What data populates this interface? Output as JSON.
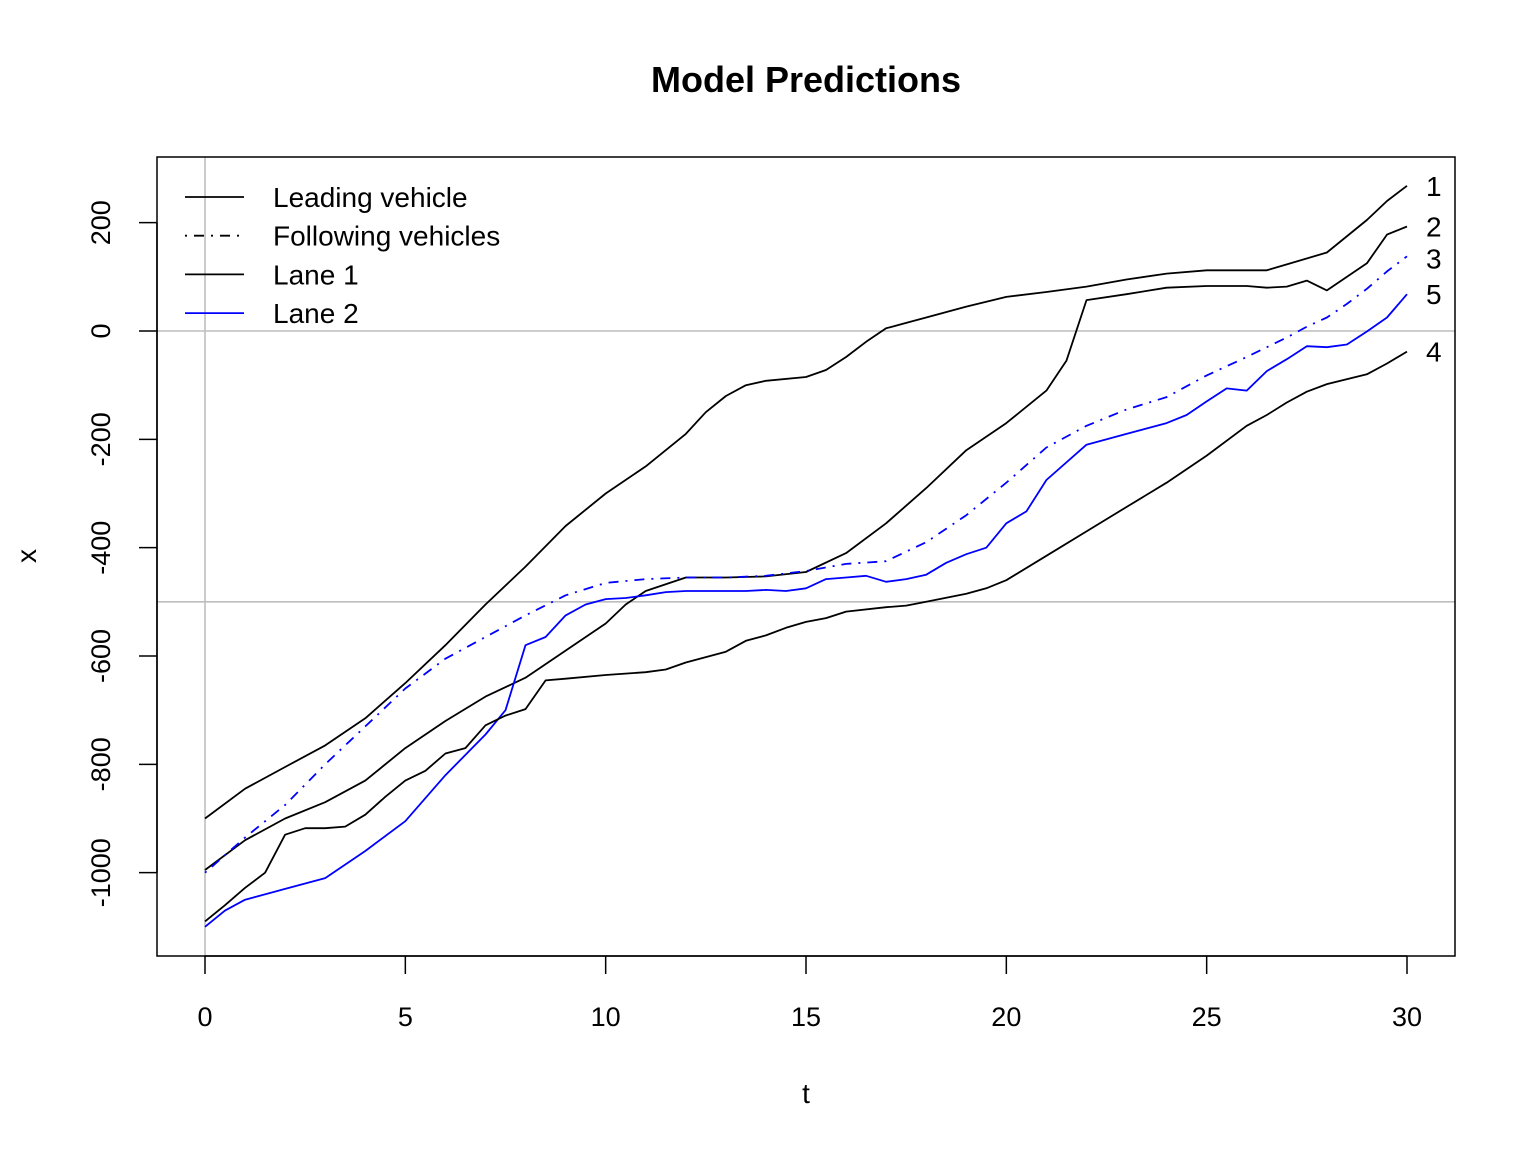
{
  "chart_data": {
    "type": "line",
    "title": "Model Predictions",
    "xlabel": "t",
    "ylabel": "x",
    "xlim": [
      0,
      30
    ],
    "ylim": [
      -1150,
      300
    ],
    "x_ticks": [
      0,
      5,
      10,
      15,
      20,
      25,
      30
    ],
    "y_ticks": [
      -1000,
      -800,
      -600,
      -400,
      -200,
      0,
      200
    ],
    "reference_lines": {
      "vertical": [
        0
      ],
      "horizontal": [
        0,
        -500
      ]
    },
    "legend": {
      "position": "top-left",
      "entries": [
        {
          "label": "Leading vehicle",
          "color": "#000000",
          "dash": "solid"
        },
        {
          "label": "Following vehicles",
          "color": "#000000",
          "dash": "dotdash"
        },
        {
          "label": "Lane 1",
          "color": "#000000",
          "dash": "solid"
        },
        {
          "label": "Lane 2",
          "color": "#0000ff",
          "dash": "solid"
        }
      ]
    },
    "series": [
      {
        "name": "1",
        "lane": "Lane 1",
        "color": "#000000",
        "x": [
          0,
          1,
          2,
          3,
          4,
          5,
          6,
          7,
          8,
          9,
          10,
          11,
          12,
          12.5,
          13,
          13.5,
          14,
          15,
          15.5,
          16,
          16.5,
          17,
          17.5,
          18,
          19,
          20,
          21,
          22,
          23,
          24,
          25,
          26,
          26.5,
          27,
          28,
          29,
          29.5,
          30
        ],
        "y": [
          -900,
          -845,
          -805,
          -765,
          -715,
          -650,
          -580,
          -505,
          -435,
          -360,
          -300,
          -250,
          -190,
          -150,
          -120,
          -100,
          -92,
          -85,
          -72,
          -48,
          -20,
          5,
          15,
          25,
          45,
          63,
          72,
          82,
          95,
          106,
          112,
          112,
          112,
          123,
          145,
          205,
          240,
          268
        ]
      },
      {
        "name": "2",
        "lane": "Lane 1",
        "color": "#000000",
        "x": [
          0,
          1,
          2,
          3,
          4,
          5,
          6,
          7,
          8,
          9,
          10,
          10.5,
          11,
          12,
          13,
          14,
          15,
          16,
          17,
          18,
          19,
          20,
          21,
          21.5,
          22,
          23,
          24,
          25,
          26,
          26.5,
          27,
          27.5,
          28,
          29,
          29.5,
          30
        ],
        "y": [
          -995,
          -940,
          -900,
          -870,
          -830,
          -770,
          -720,
          -675,
          -640,
          -590,
          -540,
          -505,
          -480,
          -455,
          -455,
          -453,
          -445,
          -410,
          -355,
          -290,
          -220,
          -170,
          -110,
          -55,
          57,
          68,
          80,
          83,
          83,
          80,
          82,
          93,
          75,
          125,
          178,
          193
        ]
      },
      {
        "name": "3",
        "lane": "Lane 2",
        "color": "#0000ff",
        "dash": "dotdash",
        "x": [
          0,
          1,
          2,
          3,
          4,
          5,
          6,
          7,
          8,
          9,
          10,
          11,
          12,
          13,
          14,
          15,
          16,
          17,
          18,
          19,
          20,
          21,
          22,
          23,
          24,
          25,
          26,
          27,
          27.5,
          28,
          28.5,
          29,
          29.5,
          30
        ],
        "y": [
          -1000,
          -935,
          -875,
          -800,
          -730,
          -660,
          -605,
          -565,
          -525,
          -488,
          -465,
          -458,
          -455,
          -455,
          -452,
          -443,
          -430,
          -425,
          -390,
          -340,
          -280,
          -215,
          -175,
          -145,
          -122,
          -82,
          -48,
          -12,
          8,
          25,
          50,
          78,
          110,
          138
        ]
      },
      {
        "name": "5",
        "lane": "Lane 2",
        "color": "#0000ff",
        "x": [
          0,
          0.5,
          1,
          2,
          3,
          4,
          5,
          6,
          7,
          7.5,
          8,
          8.5,
          9,
          9.5,
          10,
          10.5,
          11,
          11.5,
          12,
          13,
          13.5,
          14,
          14.5,
          15,
          15.5,
          16,
          16.5,
          17,
          17.5,
          18,
          18.5,
          19,
          19.5,
          20,
          20.5,
          21,
          22,
          23,
          24,
          24.5,
          25,
          25.5,
          26,
          26.5,
          27,
          27.5,
          28,
          28.5,
          29,
          29.5,
          30
        ],
        "y": [
          -1100,
          -1070,
          -1050,
          -1030,
          -1010,
          -960,
          -905,
          -820,
          -745,
          -700,
          -580,
          -565,
          -525,
          -505,
          -495,
          -493,
          -488,
          -482,
          -480,
          -480,
          -480,
          -478,
          -480,
          -475,
          -458,
          -455,
          -452,
          -463,
          -458,
          -450,
          -428,
          -412,
          -400,
          -355,
          -333,
          -275,
          -210,
          -190,
          -170,
          -155,
          -130,
          -106,
          -110,
          -74,
          -52,
          -28,
          -30,
          -25,
          -1,
          25,
          68
        ]
      },
      {
        "name": "4",
        "lane": "Lane 1",
        "color": "#000000",
        "x": [
          0,
          0.5,
          1,
          1.5,
          2,
          2.5,
          3,
          3.5,
          4,
          4.5,
          5,
          5.5,
          6,
          6.5,
          7,
          7.5,
          8,
          8.5,
          9,
          10,
          11,
          11.5,
          12,
          13,
          13.5,
          14,
          14.5,
          15,
          15.5,
          16,
          17,
          17.5,
          18,
          19,
          19.5,
          20,
          21,
          22,
          23,
          24,
          25,
          26,
          26.5,
          27,
          27.5,
          28,
          29,
          29.5,
          30
        ],
        "y": [
          -1090,
          -1060,
          -1028,
          -1000,
          -930,
          -918,
          -918,
          -915,
          -893,
          -860,
          -830,
          -812,
          -780,
          -770,
          -728,
          -710,
          -698,
          -645,
          -642,
          -635,
          -630,
          -625,
          -612,
          -592,
          -572,
          -562,
          -548,
          -537,
          -530,
          -518,
          -510,
          -507,
          -500,
          -485,
          -475,
          -460,
          -415,
          -370,
          -325,
          -280,
          -230,
          -175,
          -155,
          -132,
          -112,
          -98,
          -80,
          -60,
          -38
        ]
      }
    ]
  }
}
